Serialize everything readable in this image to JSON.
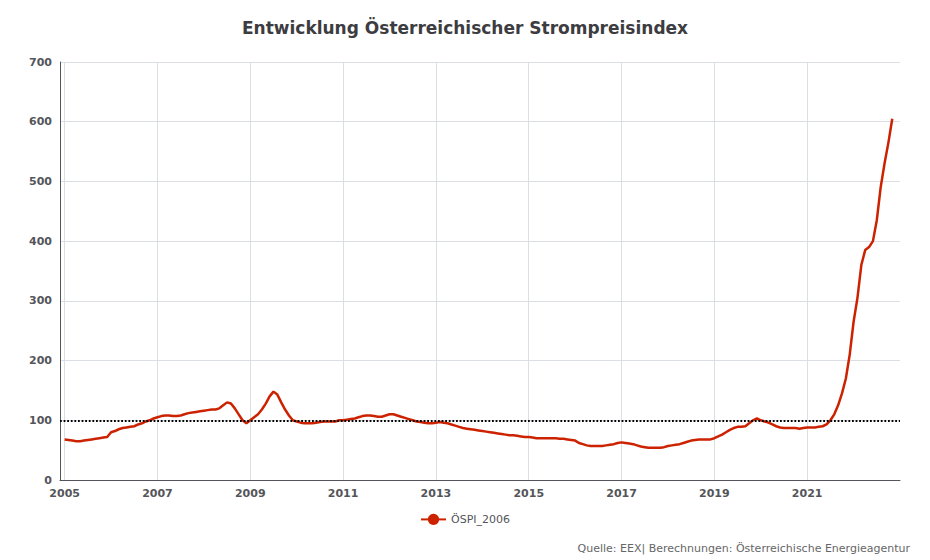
{
  "chart_data": {
    "type": "line",
    "title": "Entwicklung Österreichischer Strompreisindex",
    "source": "Quelle: EEX| Berechnungen: Österreichische Energieagentur",
    "xlim": [
      2004.9,
      2023.0
    ],
    "xticks": [
      2005,
      2007,
      2009,
      2011,
      2013,
      2015,
      2017,
      2019,
      2021
    ],
    "ylim": [
      0,
      700
    ],
    "yticks": [
      0,
      100,
      200,
      300,
      400,
      500,
      600,
      700
    ],
    "grid": true,
    "legend": "bottom",
    "hline": 100,
    "x": [
      2005,
      2005.083333,
      2005.166667,
      2005.25,
      2005.333333,
      2005.416667,
      2005.5,
      2005.583333,
      2005.666667,
      2005.75,
      2005.833333,
      2005.916667,
      2006,
      2006.083333,
      2006.166667,
      2006.25,
      2006.333333,
      2006.416667,
      2006.5,
      2006.583333,
      2006.666667,
      2006.75,
      2006.833333,
      2006.916667,
      2007,
      2007.083333,
      2007.166667,
      2007.25,
      2007.333333,
      2007.416667,
      2007.5,
      2007.583333,
      2007.666667,
      2007.75,
      2007.833333,
      2007.916667,
      2008,
      2008.083333,
      2008.166667,
      2008.25,
      2008.333333,
      2008.416667,
      2008.5,
      2008.583333,
      2008.666667,
      2008.75,
      2008.833333,
      2008.916667,
      2009,
      2009.083333,
      2009.166667,
      2009.25,
      2009.333333,
      2009.416667,
      2009.5,
      2009.583333,
      2009.666667,
      2009.75,
      2009.833333,
      2009.916667,
      2010,
      2010.083333,
      2010.166667,
      2010.25,
      2010.333333,
      2010.416667,
      2010.5,
      2010.583333,
      2010.666667,
      2010.75,
      2010.833333,
      2010.916667,
      2011,
      2011.083333,
      2011.166667,
      2011.25,
      2011.333333,
      2011.416667,
      2011.5,
      2011.583333,
      2011.666667,
      2011.75,
      2011.833333,
      2011.916667,
      2012,
      2012.083333,
      2012.166667,
      2012.25,
      2012.333333,
      2012.416667,
      2012.5,
      2012.583333,
      2012.666667,
      2012.75,
      2012.833333,
      2012.916667,
      2013,
      2013.083333,
      2013.166667,
      2013.25,
      2013.333333,
      2013.416667,
      2013.5,
      2013.583333,
      2013.666667,
      2013.75,
      2013.833333,
      2013.916667,
      2014,
      2014.083333,
      2014.166667,
      2014.25,
      2014.333333,
      2014.416667,
      2014.5,
      2014.583333,
      2014.666667,
      2014.75,
      2014.833333,
      2014.916667,
      2015,
      2015.083333,
      2015.166667,
      2015.25,
      2015.333333,
      2015.416667,
      2015.5,
      2015.583333,
      2015.666667,
      2015.75,
      2015.833333,
      2015.916667,
      2016,
      2016.083333,
      2016.166667,
      2016.25,
      2016.333333,
      2016.416667,
      2016.5,
      2016.583333,
      2016.666667,
      2016.75,
      2016.833333,
      2016.916667,
      2017,
      2017.083333,
      2017.166667,
      2017.25,
      2017.333333,
      2017.416667,
      2017.5,
      2017.583333,
      2017.666667,
      2017.75,
      2017.833333,
      2017.916667,
      2018,
      2018.083333,
      2018.166667,
      2018.25,
      2018.333333,
      2018.416667,
      2018.5,
      2018.583333,
      2018.666667,
      2018.75,
      2018.833333,
      2018.916667,
      2019,
      2019.083333,
      2019.166667,
      2019.25,
      2019.333333,
      2019.416667,
      2019.5,
      2019.583333,
      2019.666667,
      2019.75,
      2019.833333,
      2019.916667,
      2020,
      2020.083333,
      2020.166667,
      2020.25,
      2020.333333,
      2020.416667,
      2020.5,
      2020.583333,
      2020.666667,
      2020.75,
      2020.833333,
      2020.916667,
      2021,
      2021.083333,
      2021.166667,
      2021.25,
      2021.333333,
      2021.416667,
      2021.5,
      2021.583333,
      2021.666667,
      2021.75,
      2021.833333,
      2021.916667,
      2022,
      2022.083333,
      2022.166667,
      2022.25,
      2022.333333,
      2022.416667,
      2022.5,
      2022.583333,
      2022.666667,
      2022.75,
      2022.833333
    ],
    "series": [
      {
        "name": "ÖSPI_2006",
        "color": "#cc2200",
        "values": [
          68,
          67,
          66,
          65,
          65,
          66,
          67,
          68,
          69,
          70,
          71,
          72,
          80,
          82,
          85,
          87,
          88,
          89,
          90,
          93,
          95,
          98,
          100,
          103,
          105,
          107,
          108,
          108,
          107,
          107,
          108,
          110,
          112,
          113,
          114,
          115,
          116,
          117,
          118,
          118,
          120,
          125,
          130,
          128,
          120,
          110,
          100,
          95,
          100,
          105,
          110,
          118,
          128,
          140,
          148,
          143,
          130,
          118,
          108,
          100,
          98,
          96,
          95,
          95,
          95,
          96,
          97,
          98,
          98,
          98,
          98,
          100,
          100,
          101,
          102,
          103,
          105,
          107,
          108,
          108,
          107,
          106,
          106,
          108,
          110,
          110,
          108,
          106,
          104,
          102,
          100,
          98,
          97,
          96,
          95,
          95,
          96,
          97,
          96,
          95,
          93,
          91,
          89,
          87,
          86,
          85,
          84,
          83,
          82,
          81,
          80,
          79,
          78,
          77,
          76,
          75,
          75,
          74,
          73,
          72,
          72,
          71,
          70,
          70,
          70,
          70,
          70,
          70,
          69,
          69,
          68,
          67,
          66,
          62,
          60,
          58,
          57,
          57,
          57,
          57,
          58,
          59,
          60,
          62,
          63,
          62,
          61,
          60,
          58,
          56,
          55,
          54,
          54,
          54,
          54,
          55,
          57,
          58,
          59,
          60,
          62,
          64,
          66,
          67,
          68,
          68,
          68,
          68,
          70,
          73,
          76,
          80,
          84,
          87,
          89,
          89,
          90,
          95,
          100,
          103,
          100,
          98,
          96,
          93,
          90,
          88,
          87,
          87,
          87,
          87,
          86,
          87,
          88,
          88,
          88,
          89,
          90,
          93,
          100,
          110,
          125,
          145,
          170,
          210,
          265,
          305,
          360,
          385,
          390,
          400,
          435,
          490,
          530,
          565,
          605
        ]
      }
    ]
  }
}
